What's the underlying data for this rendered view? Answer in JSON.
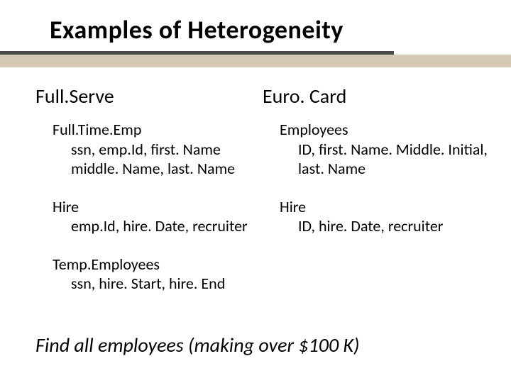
{
  "title": "Examples of Heterogeneity",
  "columns": {
    "left": {
      "header": "Full.Serve",
      "entities": [
        {
          "name": "Full.Time.Emp",
          "fields": "ssn, emp.Id, first. Name middle. Name, last. Name"
        },
        {
          "name": "Hire",
          "fields": "emp.Id, hire. Date, recruiter"
        },
        {
          "name": "Temp.Employees",
          "fields": "ssn, hire. Start, hire. End"
        }
      ]
    },
    "right": {
      "header": "Euro. Card",
      "entities": [
        {
          "name": "Employees",
          "fields": "ID, first. Name. Middle. Initial, last. Name"
        },
        {
          "name": "Hire",
          "fields": "ID, hire. Date, recruiter"
        }
      ]
    }
  },
  "query": "Find all employees (making over $100 K)",
  "colors": {
    "rule_dark": "#4a4a4a",
    "rule_light": "#d6cab6",
    "background": "#ffffff",
    "text": "#000000"
  }
}
